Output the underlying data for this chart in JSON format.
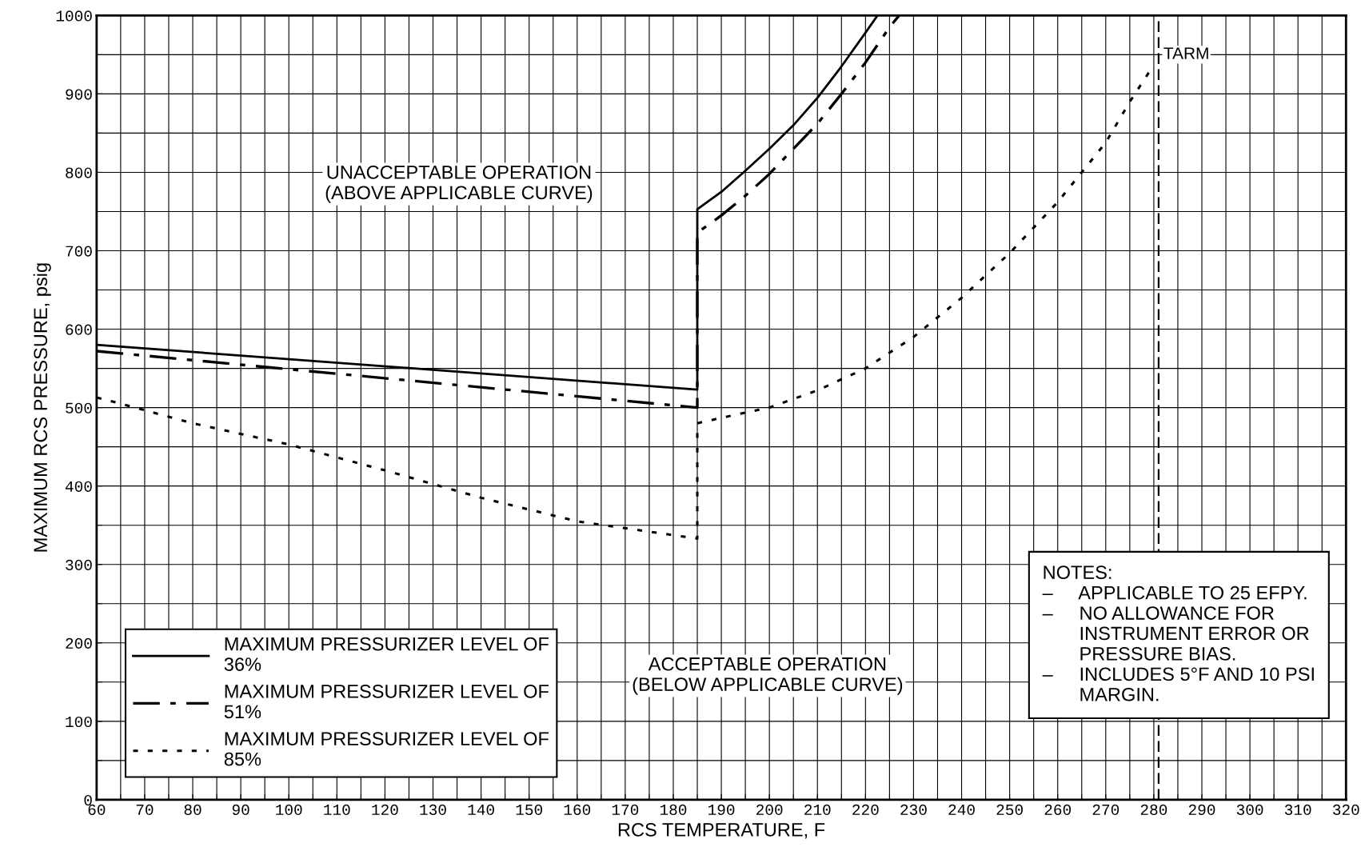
{
  "chart_data": {
    "type": "line",
    "xlabel": "RCS TEMPERATURE, F",
    "ylabel": "MAXIMUM RCS PRESSURE, psig",
    "xlim": [
      60,
      320
    ],
    "xticks": [
      60,
      70,
      80,
      90,
      100,
      110,
      120,
      130,
      140,
      150,
      160,
      170,
      180,
      190,
      200,
      210,
      220,
      230,
      240,
      250,
      260,
      270,
      280,
      290,
      300,
      310,
      320
    ],
    "ylim": [
      0,
      1000
    ],
    "yticks": [
      0,
      100,
      200,
      300,
      400,
      500,
      600,
      700,
      800,
      900,
      1000
    ],
    "grid": true,
    "legend": "bottom left",
    "series": [
      {
        "name": "MAXIMUM PRESSURIZER LEVEL OF 36%",
        "color": "#000000",
        "line_style": "solid",
        "x": [
          60,
          185,
          185,
          190,
          195,
          200,
          205,
          210,
          215,
          220,
          222.5
        ],
        "values": [
          580,
          523,
          753,
          775,
          802,
          830,
          860,
          895,
          935,
          978,
          1000
        ]
      },
      {
        "name": "MAXIMUM PRESSURIZER LEVEL OF 51%",
        "color": "#000000",
        "line_style": "dashdot",
        "x": [
          60,
          185,
          185,
          190,
          195,
          200,
          205,
          210,
          215,
          220,
          225,
          227
        ],
        "values": [
          572,
          500,
          723,
          745,
          770,
          798,
          830,
          862,
          900,
          940,
          985,
          1000
        ]
      },
      {
        "name": "MAXIMUM PRESSURIZER LEVEL OF 85%",
        "color": "#000000",
        "line_style": "dotted",
        "x": [
          60,
          65,
          80,
          100,
          120,
          140,
          160,
          185,
          185,
          190,
          200,
          210,
          220,
          230,
          240,
          250,
          260,
          270,
          275,
          280
        ],
        "values": [
          513,
          505,
          480,
          453,
          420,
          385,
          355,
          333,
          480,
          487,
          500,
          522,
          550,
          590,
          640,
          697,
          762,
          838,
          890,
          937
        ]
      }
    ],
    "ref_lines": [
      {
        "axis": "x",
        "value": 281,
        "label": "TARM",
        "color": "#000000",
        "line_style": "dashed"
      }
    ],
    "annotations": [
      "UNACCEPTABLE OPERATION\n(ABOVE APPLICABLE CURVE)",
      "ACCEPTABLE OPERATION\n(BELOW APPLICABLE CURVE)",
      "NOTES:\n–     APPLICABLE TO 25 EFPY.\n–     NO ALLOWANCE FOR\n       INSTRUMENT ERROR OR\n       PRESSURE BIAS.\n–     INCLUDES 5°F AND 10 PSI\n       MARGIN."
    ]
  }
}
